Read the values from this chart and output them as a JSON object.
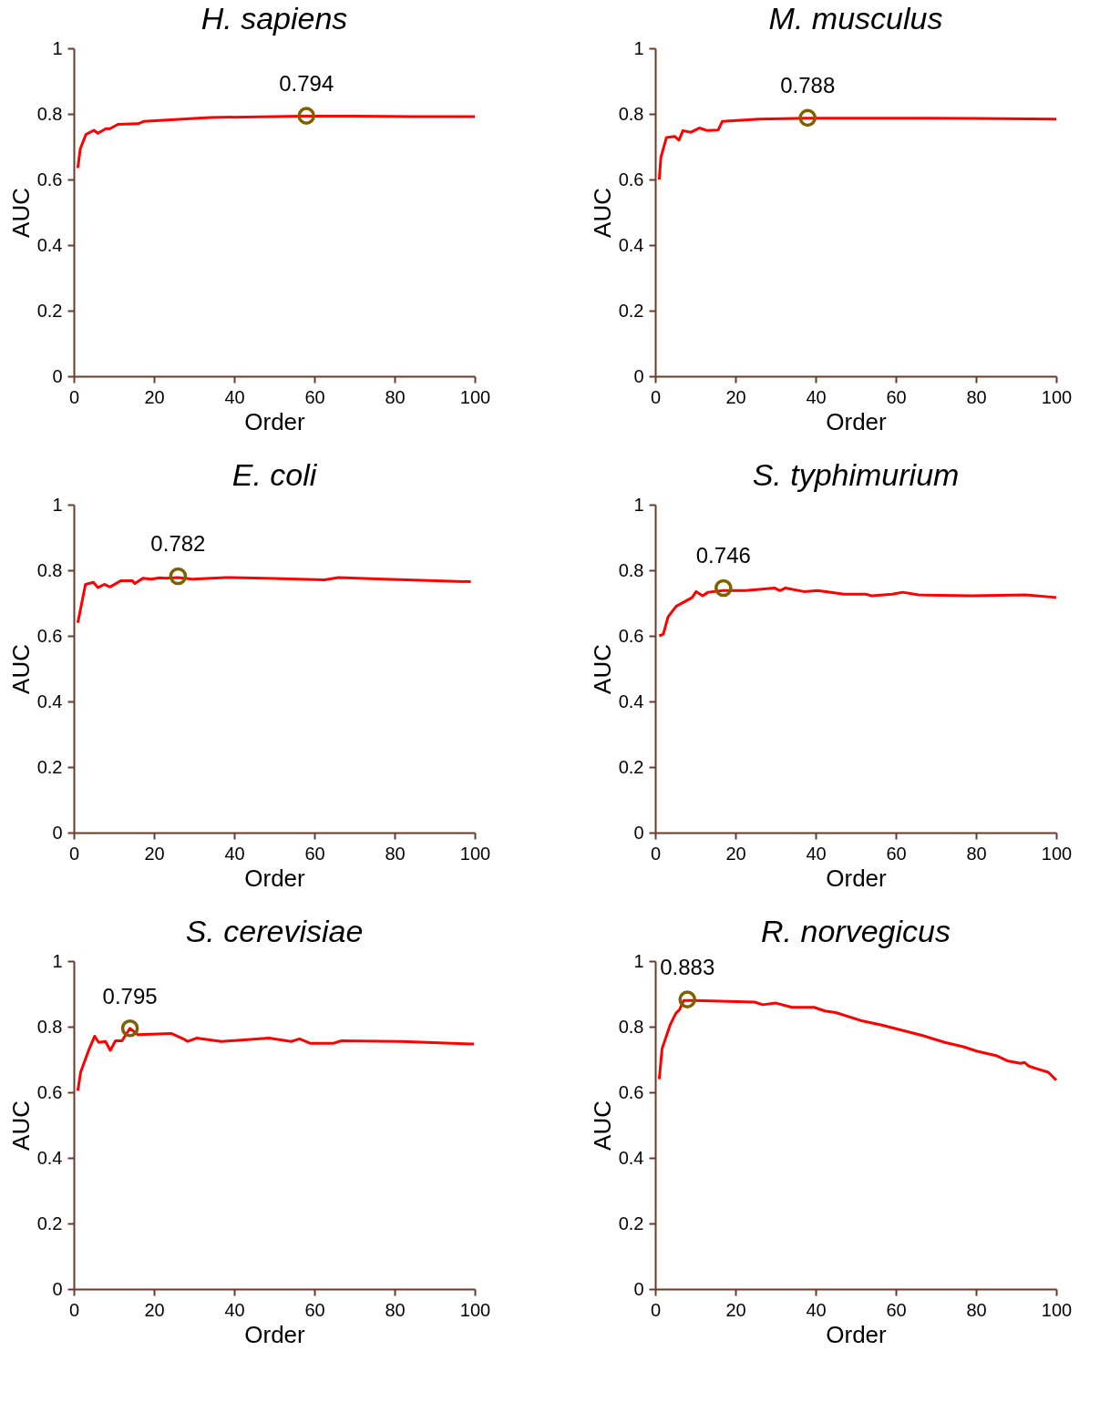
{
  "chart_data": [
    {
      "type": "line",
      "title": "H. sapiens",
      "xlabel": "Order",
      "ylabel": "AUC",
      "xlim": [
        0,
        100
      ],
      "xticks": [
        0,
        20,
        40,
        60,
        80,
        100
      ],
      "ylim": [
        0,
        1
      ],
      "yticks": [
        0,
        0.2,
        0.4,
        0.6,
        0.8,
        1
      ],
      "grid": false,
      "series": [
        {
          "type": "line",
          "color": "#ff0000",
          "marker": "none",
          "x": [
            1,
            1.6,
            3,
            5,
            6,
            8,
            9,
            11,
            16,
            17.4,
            30,
            34,
            57,
            70,
            85,
            100
          ],
          "values": [
            0.635,
            0.693,
            0.737,
            0.75,
            0.741,
            0.755,
            0.755,
            0.768,
            0.77,
            0.777,
            0.786,
            0.789,
            0.793,
            0.793,
            0.792,
            0.792
          ]
        },
        {
          "type": "scatter",
          "color": "#7f6000",
          "marker": "circle",
          "x": [
            58
          ],
          "values": [
            0.794
          ]
        }
      ],
      "annotations": [
        {
          "text": "0.794",
          "x": 58,
          "y": 0.794
        }
      ]
    },
    {
      "type": "line",
      "title": "M. musculus",
      "xlabel": "Order",
      "ylabel": "AUC",
      "xlim": [
        0,
        100
      ],
      "xticks": [
        0,
        20,
        40,
        60,
        80,
        100
      ],
      "ylim": [
        0,
        1
      ],
      "yticks": [
        0,
        0.2,
        0.4,
        0.6,
        0.8,
        1
      ],
      "grid": false,
      "series": [
        {
          "type": "line",
          "color": "#ff0000",
          "marker": "none",
          "x": [
            1,
            1.4,
            2.8,
            4.9,
            5.9,
            6.9,
            8.9,
            11,
            13,
            15.7,
            16.7,
            25.8,
            37.8,
            60,
            80,
            100
          ],
          "values": [
            0.6,
            0.667,
            0.728,
            0.731,
            0.72,
            0.749,
            0.744,
            0.757,
            0.749,
            0.751,
            0.777,
            0.784,
            0.787,
            0.787,
            0.786,
            0.784
          ]
        },
        {
          "type": "scatter",
          "color": "#7f6000",
          "marker": "circle",
          "x": [
            38
          ],
          "values": [
            0.788
          ]
        }
      ],
      "annotations": [
        {
          "text": "0.788",
          "x": 38,
          "y": 0.788
        }
      ]
    },
    {
      "type": "line",
      "title": "E. coli",
      "xlabel": "Order",
      "ylabel": "AUC",
      "xlim": [
        0,
        100
      ],
      "xticks": [
        0,
        20,
        40,
        60,
        80,
        100
      ],
      "ylim": [
        0,
        1
      ],
      "yticks": [
        0,
        0.2,
        0.4,
        0.6,
        0.8,
        1
      ],
      "grid": false,
      "series": [
        {
          "type": "line",
          "color": "#ff0000",
          "marker": "none",
          "x": [
            1,
            2.9,
            4.9,
            6,
            7.6,
            9,
            11.7,
            14.6,
            15.2,
            17.3,
            19.3,
            21.4,
            22.8,
            26,
            29.6,
            37.9,
            50,
            62.5,
            66,
            77.6,
            99
          ],
          "values": [
            0.64,
            0.757,
            0.763,
            0.747,
            0.757,
            0.749,
            0.768,
            0.768,
            0.76,
            0.776,
            0.773,
            0.777,
            0.776,
            0.778,
            0.773,
            0.778,
            0.775,
            0.771,
            0.778,
            0.773,
            0.765
          ]
        },
        {
          "type": "scatter",
          "color": "#7f6000",
          "marker": "circle",
          "x": [
            26
          ],
          "values": [
            0.782
          ]
        }
      ],
      "annotations": [
        {
          "text": "0.782",
          "x": 26,
          "y": 0.782
        }
      ]
    },
    {
      "type": "line",
      "title": "S. typhimurium",
      "xlabel": "Order",
      "ylabel": "AUC",
      "xlim": [
        0,
        100
      ],
      "xticks": [
        0,
        20,
        40,
        60,
        80,
        100
      ],
      "ylim": [
        0,
        1
      ],
      "yticks": [
        0,
        0.2,
        0.4,
        0.6,
        0.8,
        1
      ],
      "grid": false,
      "series": [
        {
          "type": "line",
          "color": "#ff0000",
          "marker": "none",
          "x": [
            1,
            2,
            3.2,
            5.2,
            9.2,
            10.2,
            11.8,
            13.2,
            16.8,
            22.6,
            29.7,
            31.1,
            32.5,
            37.1,
            40.5,
            47.1,
            52.5,
            54.1,
            59.1,
            61.7,
            65.7,
            79,
            92.4,
            100
          ],
          "values": [
            0.6,
            0.605,
            0.658,
            0.69,
            0.717,
            0.735,
            0.722,
            0.733,
            0.738,
            0.738,
            0.746,
            0.738,
            0.746,
            0.735,
            0.738,
            0.727,
            0.727,
            0.722,
            0.727,
            0.733,
            0.725,
            0.722,
            0.725,
            0.717
          ]
        },
        {
          "type": "scatter",
          "color": "#7f6000",
          "marker": "circle",
          "x": [
            17
          ],
          "values": [
            0.746
          ]
        }
      ],
      "annotations": [
        {
          "text": "0.746",
          "x": 17,
          "y": 0.746
        }
      ]
    },
    {
      "type": "line",
      "title": "S. cerevisiae",
      "xlabel": "Order",
      "ylabel": "AUC",
      "xlim": [
        0,
        100
      ],
      "xticks": [
        0,
        20,
        40,
        60,
        80,
        100
      ],
      "ylim": [
        0,
        1
      ],
      "yticks": [
        0,
        0.2,
        0.4,
        0.6,
        0.8,
        1
      ],
      "grid": false,
      "series": [
        {
          "type": "line",
          "color": "#ff0000",
          "marker": "none",
          "x": [
            1,
            1.7,
            3.7,
            5.2,
            6.2,
            7.9,
            9.1,
            10.4,
            12,
            14,
            15.9,
            24.4,
            27.3,
            28.4,
            30.6,
            36.8,
            48.7,
            54.2,
            56.3,
            59,
            64.6,
            66.7,
            81.8,
            94.2,
            99.8
          ],
          "values": [
            0.605,
            0.661,
            0.728,
            0.771,
            0.752,
            0.755,
            0.728,
            0.757,
            0.757,
            0.795,
            0.776,
            0.779,
            0.763,
            0.755,
            0.765,
            0.755,
            0.765,
            0.755,
            0.763,
            0.749,
            0.749,
            0.757,
            0.755,
            0.749,
            0.747
          ]
        },
        {
          "type": "scatter",
          "color": "#7f6000",
          "marker": "circle",
          "x": [
            14
          ],
          "values": [
            0.795
          ]
        }
      ],
      "annotations": [
        {
          "text": "0.795",
          "x": 14,
          "y": 0.795
        }
      ]
    },
    {
      "type": "line",
      "title": "R. norvegicus",
      "xlabel": "Order",
      "ylabel": "AUC",
      "xlim": [
        0,
        100
      ],
      "xticks": [
        0,
        20,
        40,
        60,
        80,
        100
      ],
      "ylim": [
        0,
        1
      ],
      "yticks": [
        0,
        0.2,
        0.4,
        0.6,
        0.8,
        1
      ],
      "grid": false,
      "series": [
        {
          "type": "line",
          "color": "#ff0000",
          "marker": "none",
          "x": [
            1,
            1.7,
            3.7,
            5.1,
            6.1,
            7.1,
            9.8,
            24.8,
            26.8,
            30.1,
            34.1,
            39.6,
            42.3,
            45,
            51.2,
            56.5,
            66.7,
            72.2,
            76.8,
            80.3,
            85,
            87.8,
            91.1,
            92.1,
            93.1,
            95.1,
            98,
            100
          ],
          "values": [
            0.64,
            0.733,
            0.805,
            0.84,
            0.853,
            0.88,
            0.88,
            0.875,
            0.867,
            0.872,
            0.859,
            0.859,
            0.848,
            0.843,
            0.819,
            0.805,
            0.773,
            0.752,
            0.739,
            0.725,
            0.712,
            0.696,
            0.688,
            0.691,
            0.68,
            0.672,
            0.661,
            0.637
          ]
        },
        {
          "type": "scatter",
          "color": "#7f6000",
          "marker": "circle",
          "x": [
            8
          ],
          "values": [
            0.883
          ]
        }
      ],
      "annotations": [
        {
          "text": "0.883",
          "x": 8,
          "y": 0.883
        }
      ]
    }
  ]
}
